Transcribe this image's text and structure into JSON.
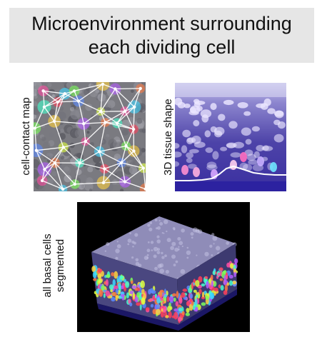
{
  "title": {
    "line1": "Microenvironment surrounding",
    "line2": "each dividing cell"
  },
  "panels": {
    "contact_map": {
      "label": "cell-contact map"
    },
    "tissue_shape": {
      "label": "3D tissue shape"
    },
    "segmented": {
      "label_line1": "all basal cells",
      "label_line2": "segmented"
    }
  },
  "colors": {
    "title_background": "#e6e6e6",
    "contact_lines": "#ffffff",
    "tissue_tint": "#4a3fb0",
    "basement_membrane": "#ffffff"
  }
}
